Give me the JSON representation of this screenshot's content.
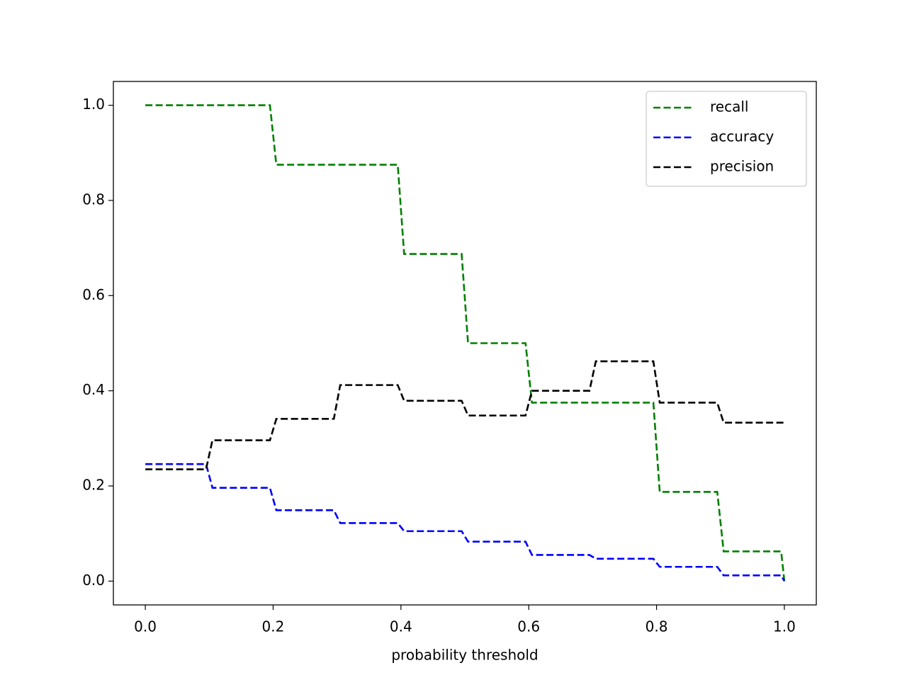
{
  "chart_data": {
    "type": "line",
    "xlabel": "probability threshold",
    "x": [
      0,
      0.095,
      0.105,
      0.195,
      0.205,
      0.295,
      0.305,
      0.395,
      0.405,
      0.495,
      0.505,
      0.595,
      0.605,
      0.695,
      0.705,
      0.795,
      0.805,
      0.895,
      0.905,
      0.995,
      1.0
    ],
    "series": [
      {
        "name": "recall",
        "color": "#008000",
        "values": [
          1.0,
          1.0,
          1.0,
          1.0,
          0.875,
          0.875,
          0.875,
          0.875,
          0.6875,
          0.6875,
          0.5,
          0.5,
          0.375,
          0.375,
          0.375,
          0.375,
          0.1875,
          0.1875,
          0.0625,
          0.0625,
          0.0
        ]
      },
      {
        "name": "accuracy",
        "color": "#0000ff",
        "values": [
          0.246,
          0.246,
          0.196,
          0.196,
          0.149,
          0.149,
          0.122,
          0.122,
          0.105,
          0.105,
          0.083,
          0.083,
          0.055,
          0.055,
          0.047,
          0.047,
          0.03,
          0.03,
          0.012,
          0.012,
          0.0
        ]
      },
      {
        "name": "precision",
        "color": "#000000",
        "values": [
          0.235,
          0.235,
          0.296,
          0.296,
          0.341,
          0.341,
          0.412,
          0.412,
          0.379,
          0.379,
          0.348,
          0.348,
          0.4,
          0.4,
          0.462,
          0.462,
          0.375,
          0.375,
          0.333,
          0.333,
          0.333
        ]
      }
    ],
    "xlim": [
      -0.05,
      1.05
    ],
    "ylim": [
      -0.05,
      1.05
    ],
    "xticks": [
      {
        "value": 0,
        "label": "0.0"
      },
      0.2,
      0.4,
      0.6,
      0.8,
      {
        "value": 1,
        "label": "1.0"
      }
    ],
    "yticks": [
      {
        "value": 0,
        "label": "0.0"
      },
      0.2,
      0.4,
      0.6,
      0.8,
      {
        "value": 1,
        "label": "1.0"
      }
    ],
    "legend": "upper right",
    "dashed": true
  }
}
